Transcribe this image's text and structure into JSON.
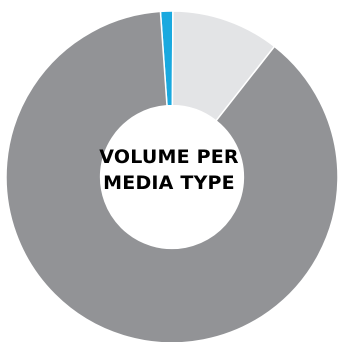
{
  "chart_data": {
    "type": "pie",
    "title_line1": "VOLUME PER",
    "title_line2": "MEDIA TYPE",
    "slices": [
      {
        "value": 1.2,
        "color": "#1aa9df"
      },
      {
        "value": 10.5,
        "color": "#e3e4e6"
      },
      {
        "value": 88.3,
        "color": "#929396"
      }
    ],
    "start_angle_deg": -4,
    "hole_ratio": 0.43
  }
}
